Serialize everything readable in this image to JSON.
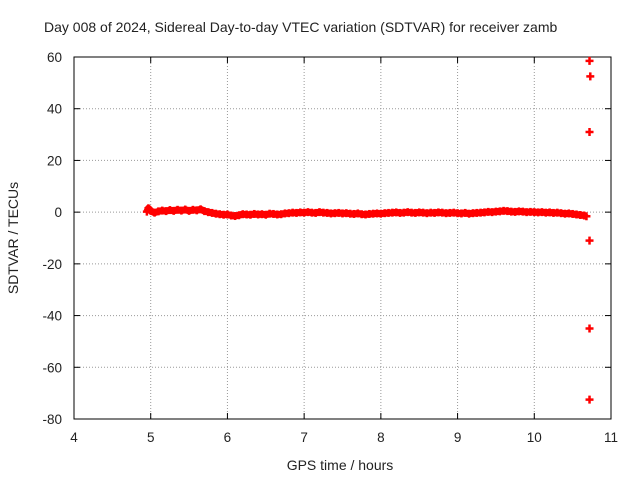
{
  "chart_data": {
    "type": "scatter",
    "title": "Day 008 of 2024, Sidereal Day-to-day VTEC variation (SDTVAR) for receiver zamb",
    "xlabel": "GPS time / hours",
    "ylabel": "SDTVAR / TECUs",
    "xlim": [
      4,
      11
    ],
    "ylim": [
      -80,
      60
    ],
    "xticks": [
      4,
      5,
      6,
      7,
      8,
      9,
      10,
      11
    ],
    "yticks": [
      -80,
      -60,
      -40,
      -20,
      0,
      20,
      40,
      60
    ],
    "grid": true,
    "series": [
      {
        "color": "#ff0000",
        "marker": "plus",
        "points": [
          [
            4.95,
            0.2
          ],
          [
            4.97,
            1.5
          ],
          [
            5.0,
            0.5
          ],
          [
            5.05,
            -0.2
          ],
          [
            5.1,
            0.3
          ],
          [
            5.15,
            0.6
          ],
          [
            5.2,
            0.4
          ],
          [
            5.25,
            0.8
          ],
          [
            5.3,
            0.5
          ],
          [
            5.35,
            0.9
          ],
          [
            5.4,
            0.6
          ],
          [
            5.45,
            1.0
          ],
          [
            5.5,
            0.5
          ],
          [
            5.55,
            0.9
          ],
          [
            5.6,
            0.7
          ],
          [
            5.65,
            1.1
          ],
          [
            5.7,
            0.4
          ],
          [
            5.75,
            0.0
          ],
          [
            5.8,
            -0.3
          ],
          [
            5.85,
            -0.6
          ],
          [
            5.9,
            -0.8
          ],
          [
            5.95,
            -1.0
          ],
          [
            6.0,
            -0.9
          ],
          [
            6.05,
            -1.3
          ],
          [
            6.1,
            -1.5
          ],
          [
            6.15,
            -1.2
          ],
          [
            6.2,
            -0.8
          ],
          [
            6.25,
            -0.9
          ],
          [
            6.3,
            -1.0
          ],
          [
            6.35,
            -0.7
          ],
          [
            6.4,
            -0.9
          ],
          [
            6.45,
            -0.8
          ],
          [
            6.5,
            -1.0
          ],
          [
            6.55,
            -0.6
          ],
          [
            6.6,
            -0.7
          ],
          [
            6.65,
            -0.9
          ],
          [
            6.7,
            -0.8
          ],
          [
            6.75,
            -0.5
          ],
          [
            6.8,
            -0.4
          ],
          [
            6.85,
            -0.2
          ],
          [
            6.9,
            -0.3
          ],
          [
            6.95,
            -0.1
          ],
          [
            7.0,
            -0.2
          ],
          [
            7.05,
            0.0
          ],
          [
            7.1,
            -0.2
          ],
          [
            7.15,
            -0.3
          ],
          [
            7.2,
            0.0
          ],
          [
            7.25,
            -0.2
          ],
          [
            7.3,
            -0.3
          ],
          [
            7.35,
            -0.5
          ],
          [
            7.4,
            -0.4
          ],
          [
            7.45,
            -0.3
          ],
          [
            7.5,
            -0.5
          ],
          [
            7.55,
            -0.4
          ],
          [
            7.6,
            -0.6
          ],
          [
            7.65,
            -0.7
          ],
          [
            7.7,
            -0.5
          ],
          [
            7.75,
            -0.8
          ],
          [
            7.8,
            -0.9
          ],
          [
            7.85,
            -0.7
          ],
          [
            7.9,
            -0.6
          ],
          [
            7.95,
            -0.5
          ],
          [
            8.0,
            -0.6
          ],
          [
            8.05,
            -0.4
          ],
          [
            8.1,
            -0.3
          ],
          [
            8.15,
            -0.2
          ],
          [
            8.2,
            -0.1
          ],
          [
            8.25,
            -0.3
          ],
          [
            8.3,
            -0.2
          ],
          [
            8.35,
            0.0
          ],
          [
            8.4,
            -0.2
          ],
          [
            8.45,
            -0.3
          ],
          [
            8.5,
            -0.1
          ],
          [
            8.55,
            -0.2
          ],
          [
            8.6,
            -0.4
          ],
          [
            8.65,
            -0.2
          ],
          [
            8.7,
            -0.3
          ],
          [
            8.75,
            -0.1
          ],
          [
            8.8,
            -0.2
          ],
          [
            8.85,
            -0.4
          ],
          [
            8.9,
            -0.3
          ],
          [
            8.95,
            -0.2
          ],
          [
            9.0,
            -0.4
          ],
          [
            9.05,
            -0.5
          ],
          [
            9.1,
            -0.3
          ],
          [
            9.15,
            -0.6
          ],
          [
            9.2,
            -0.4
          ],
          [
            9.25,
            -0.3
          ],
          [
            9.3,
            -0.2
          ],
          [
            9.35,
            -0.1
          ],
          [
            9.4,
            0.1
          ],
          [
            9.45,
            0.0
          ],
          [
            9.5,
            0.2
          ],
          [
            9.55,
            0.3
          ],
          [
            9.6,
            0.5
          ],
          [
            9.65,
            0.4
          ],
          [
            9.7,
            0.2
          ],
          [
            9.75,
            0.1
          ],
          [
            9.8,
            0.3
          ],
          [
            9.85,
            0.2
          ],
          [
            9.9,
            0.0
          ],
          [
            9.95,
            0.1
          ],
          [
            10.0,
            0.0
          ],
          [
            10.05,
            -0.1
          ],
          [
            10.1,
            0.0
          ],
          [
            10.15,
            -0.2
          ],
          [
            10.2,
            -0.1
          ],
          [
            10.25,
            -0.3
          ],
          [
            10.3,
            -0.2
          ],
          [
            10.35,
            -0.4
          ],
          [
            10.4,
            -0.6
          ],
          [
            10.45,
            -0.5
          ],
          [
            10.5,
            -0.7
          ],
          [
            10.55,
            -0.9
          ],
          [
            10.6,
            -1.1
          ],
          [
            10.65,
            -1.3
          ],
          [
            10.68,
            -1.6
          ],
          [
            10.72,
            58.5
          ],
          [
            10.73,
            52.5
          ],
          [
            10.72,
            31
          ],
          [
            10.72,
            -11
          ],
          [
            10.72,
            -45
          ],
          [
            10.72,
            -72.5
          ]
        ]
      }
    ]
  }
}
